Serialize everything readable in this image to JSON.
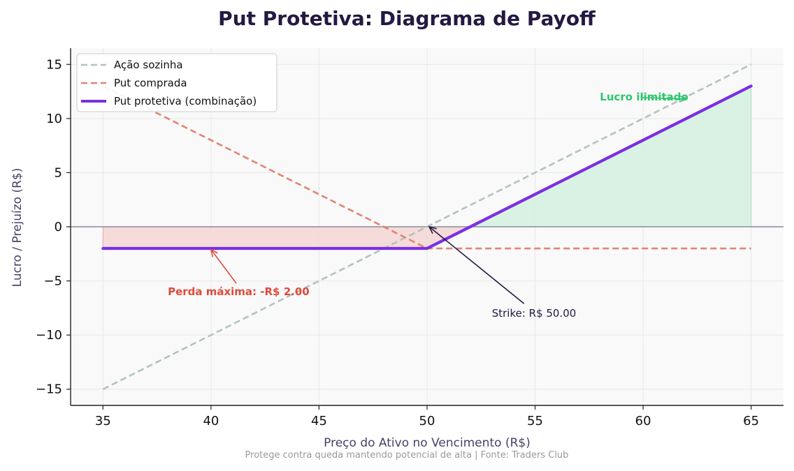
{
  "chart_data": {
    "type": "line",
    "title": "Put Protetiva: Diagrama de Payoff",
    "xlabel": "Preço do Ativo no Vencimento (R$)",
    "ylabel": "Lucro / Prejuízo (R$)",
    "footnote": "Protege contra queda mantendo potencial de alta | Fonte: Traders Club",
    "xlim": [
      33.5,
      66.5
    ],
    "ylim": [
      -16.5,
      16.5
    ],
    "xticks": [
      35,
      40,
      45,
      50,
      55,
      60,
      65
    ],
    "yticks": [
      -15,
      -10,
      -5,
      0,
      5,
      10,
      15
    ],
    "ytick_labels": [
      "−15",
      "−10",
      "−5",
      "0",
      "5",
      "10",
      "15"
    ],
    "grid": true,
    "legend_position": "top-left",
    "strike": 50,
    "premium": 2,
    "series": [
      {
        "name": "Ação sozinha",
        "color": "#b4c2bb",
        "style": "dashed",
        "x": [
          35,
          65
        ],
        "y": [
          -15,
          15
        ]
      },
      {
        "name": "Put comprada",
        "color": "#e08474",
        "style": "dashed",
        "x": [
          35,
          50,
          65
        ],
        "y": [
          13,
          -2,
          -2
        ]
      },
      {
        "name": "Put protetiva (combinação)",
        "color": "#7a2fe3",
        "style": "solid",
        "x": [
          35,
          50,
          65
        ],
        "y": [
          -2,
          -2,
          13
        ]
      }
    ],
    "annotations": [
      {
        "text": "Perda máxima: -R$ 2.00",
        "color": "#de4b3b",
        "text_x": 38,
        "text_y": -6,
        "arrow_x": 40,
        "arrow_y": -2.1
      },
      {
        "text": "Lucro ilimitado",
        "color": "#2ec66f",
        "text_x": 58,
        "text_y": 12,
        "arrow_x": 62,
        "arrow_y": 11.8
      },
      {
        "text": "Strike: R$ 50.00",
        "color": "#231942",
        "text_x": 53,
        "text_y": -8,
        "arrow_x": 50.1,
        "arrow_y": 0
      }
    ],
    "colors": {
      "loss_fill": "#f6d6d6",
      "gain_fill": "#d6f1e1",
      "zero_line": "#8a8a99",
      "plot_bg": "#f9f9f9",
      "grid": "#e8e8e8"
    }
  }
}
